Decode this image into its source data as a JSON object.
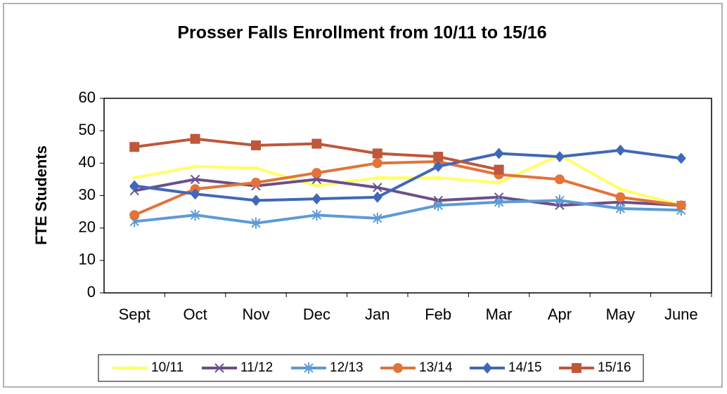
{
  "chart_data": {
    "type": "line",
    "title": "Prosser Falls Enrollment from 10/11 to 15/16",
    "y_label": "FTE Students",
    "categories": [
      "Sept",
      "Oct",
      "Nov",
      "Dec",
      "Jan",
      "Feb",
      "Mar",
      "Apr",
      "May",
      "June"
    ],
    "ylim": [
      0,
      60
    ],
    "yticks": [
      0,
      10,
      20,
      30,
      40,
      50,
      60
    ],
    "series": [
      {
        "name": "10/11",
        "color": "#ffff66",
        "marker": "dot",
        "values": [
          35.5,
          39,
          38.5,
          33,
          35.5,
          35.5,
          34,
          42.5,
          32,
          27
        ]
      },
      {
        "name": "11/12",
        "color": "#6a4f8a",
        "marker": "x",
        "values": [
          31.5,
          35,
          33,
          35,
          32.5,
          28.5,
          29.5,
          27,
          28,
          27
        ]
      },
      {
        "name": "12/13",
        "color": "#5b9bd5",
        "marker": "asterisk",
        "values": [
          22,
          24,
          21.5,
          24,
          23,
          27,
          28,
          28.5,
          26,
          25.5
        ]
      },
      {
        "name": "13/14",
        "color": "#e2733a",
        "marker": "circle",
        "values": [
          24,
          32,
          34,
          37,
          40,
          40.5,
          36.5,
          35,
          29.5,
          27
        ]
      },
      {
        "name": "14/15",
        "color": "#4068b8",
        "marker": "diamond",
        "values": [
          33,
          30.5,
          28.5,
          29,
          29.5,
          39,
          43,
          42,
          44,
          41.5
        ]
      },
      {
        "name": "15/16",
        "color": "#c0563a",
        "marker": "square",
        "values": [
          45,
          47.5,
          45.5,
          46,
          43,
          42,
          38,
          null,
          null,
          null
        ]
      }
    ]
  }
}
